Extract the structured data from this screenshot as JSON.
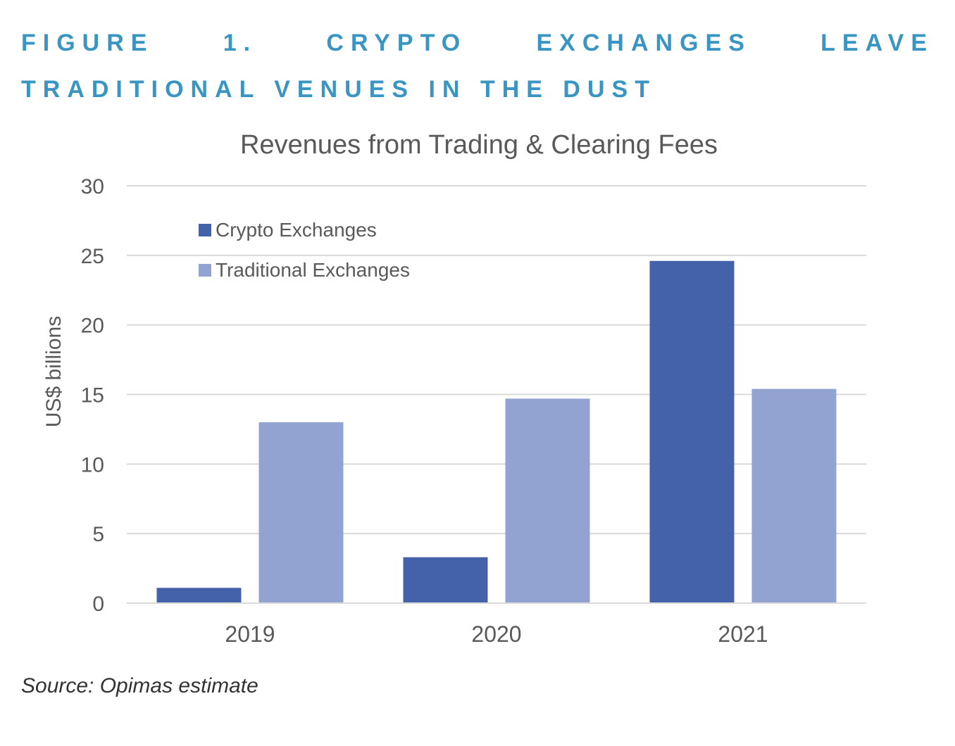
{
  "figure": {
    "title": "FIGURE 1. CRYPTO EXCHANGES LEAVE TRADITIONAL VENUES IN THE DUST",
    "source": "Source: Opimas estimate"
  },
  "colors": {
    "figure_title": "#3b95c2",
    "crypto": "#4462aa",
    "traditional": "#93a3d1",
    "gridline": "#d9d9d9",
    "text": "#595959"
  },
  "chart_data": {
    "type": "bar",
    "title": "Revenues from Trading & Clearing Fees",
    "xlabel": "",
    "ylabel": "US$ billions",
    "categories": [
      "2019",
      "2020",
      "2021"
    ],
    "series": [
      {
        "name": "Crypto Exchanges",
        "values": [
          1.1,
          3.3,
          24.6
        ]
      },
      {
        "name": "Traditional Exchanges",
        "values": [
          13.0,
          14.7,
          15.4
        ]
      }
    ],
    "ylim": [
      0,
      30
    ],
    "yticks": [
      0,
      5,
      10,
      15,
      20,
      25,
      30
    ],
    "grid": true,
    "legend_position": "top-left"
  }
}
